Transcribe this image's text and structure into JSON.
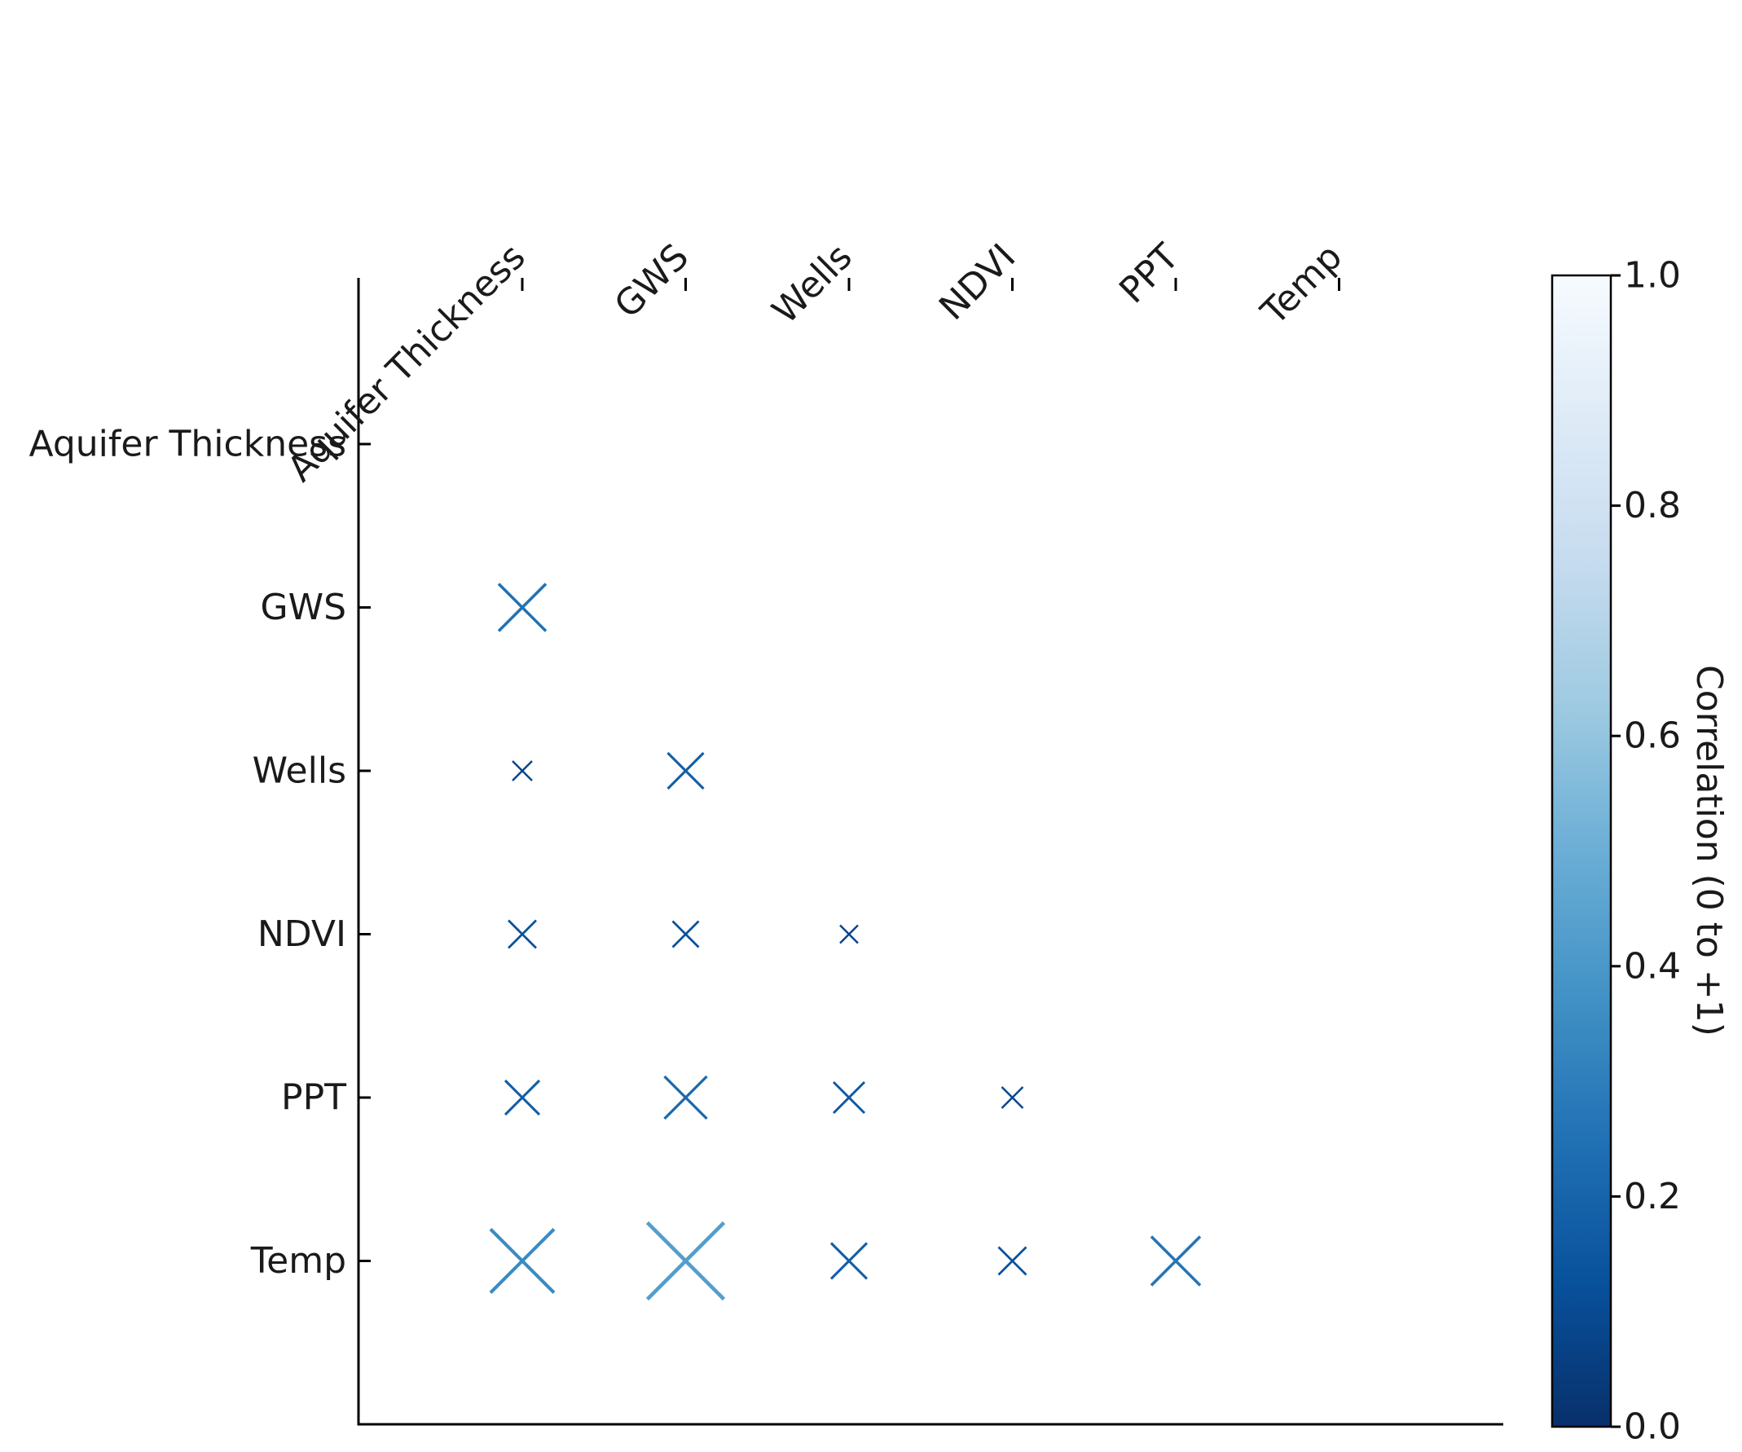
{
  "chart_data": {
    "type": "heatmap",
    "marker": "x",
    "matrix_shape": "lower-triangle",
    "variables": [
      "Aquifer Thickness",
      "GWS",
      "Wells",
      "NDVI",
      "PPT",
      "Temp"
    ],
    "x_tick_labels": [
      "Aquifer Thickness",
      "GWS",
      "Wells",
      "NDVI",
      "PPT",
      "Temp"
    ],
    "y_tick_labels": [
      "Aquifer Thickness",
      "GWS",
      "Wells",
      "NDVI",
      "PPT",
      "Temp"
    ],
    "cells": [
      {
        "row": "GWS",
        "col": "Aquifer Thickness",
        "value": 0.25
      },
      {
        "row": "Wells",
        "col": "Aquifer Thickness",
        "value": 0.08
      },
      {
        "row": "Wells",
        "col": "GWS",
        "value": 0.18
      },
      {
        "row": "NDVI",
        "col": "Aquifer Thickness",
        "value": 0.13
      },
      {
        "row": "NDVI",
        "col": "GWS",
        "value": 0.12
      },
      {
        "row": "NDVI",
        "col": "Wells",
        "value": 0.07
      },
      {
        "row": "PPT",
        "col": "Aquifer Thickness",
        "value": 0.17
      },
      {
        "row": "PPT",
        "col": "GWS",
        "value": 0.22
      },
      {
        "row": "PPT",
        "col": "Wells",
        "value": 0.15
      },
      {
        "row": "PPT",
        "col": "NDVI",
        "value": 0.09
      },
      {
        "row": "Temp",
        "col": "Aquifer Thickness",
        "value": 0.35
      },
      {
        "row": "Temp",
        "col": "GWS",
        "value": 0.43
      },
      {
        "row": "Temp",
        "col": "Wells",
        "value": 0.18
      },
      {
        "row": "Temp",
        "col": "NDVI",
        "value": 0.13
      },
      {
        "row": "Temp",
        "col": "PPT",
        "value": 0.26
      }
    ],
    "colorbar": {
      "label": "Correlation (0 to +1)",
      "range": [
        0,
        1
      ],
      "ticks": [
        "0.0",
        "0.2",
        "0.4",
        "0.6",
        "0.8",
        "1.0"
      ],
      "colormap": "Blues_r",
      "color_low": "#08306b",
      "color_high": "#f7fbff"
    },
    "grid": false
  }
}
